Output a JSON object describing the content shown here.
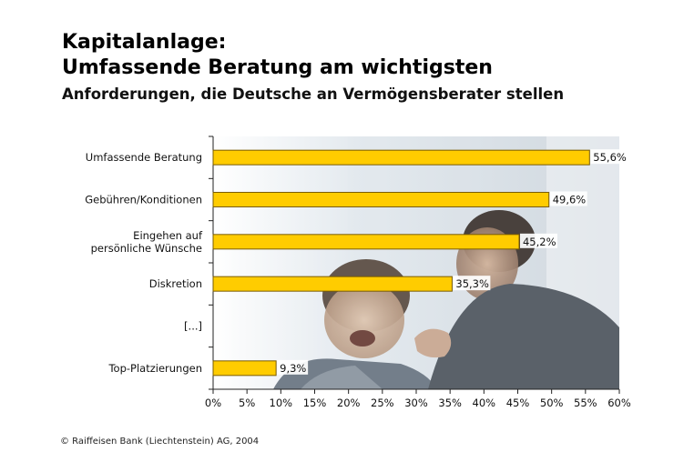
{
  "header": {
    "title_line1": "Kapitalanlage:",
    "title_line2": "Umfassende Beratung am wichtigsten",
    "subtitle": "Anforderungen, die Deutsche an Vermögensberater stellen"
  },
  "footer": "© Raiffeisen Bank (Liechtenstein) AG, 2004",
  "colors": {
    "bar": "#FFCC00",
    "bar_stroke": "#7a5c00"
  },
  "chart_data": {
    "type": "bar",
    "orientation": "horizontal",
    "categories": [
      [
        "Umfassende Beratung"
      ],
      [
        "Gebühren/Konditionen"
      ],
      [
        "Eingehen auf",
        "persönliche Wünsche"
      ],
      [
        "Diskretion"
      ],
      [
        "[...]"
      ],
      [
        "Top-Platzierungen"
      ]
    ],
    "values": [
      55.6,
      49.6,
      45.2,
      35.3,
      null,
      9.3
    ],
    "data_labels": [
      "55,6%",
      "49,6%",
      "45,2%",
      "35,3%",
      "",
      "9,3%"
    ],
    "xlim": [
      0,
      60
    ],
    "xticks": [
      0,
      5,
      10,
      15,
      20,
      25,
      30,
      35,
      40,
      45,
      50,
      55,
      60
    ],
    "xtick_labels": [
      "0%",
      "5%",
      "10%",
      "15%",
      "20%",
      "25%",
      "30%",
      "35%",
      "40%",
      "45%",
      "50%",
      "55%",
      "60%"
    ],
    "grid": false,
    "legend": "none",
    "background": "photo of two men talking"
  }
}
